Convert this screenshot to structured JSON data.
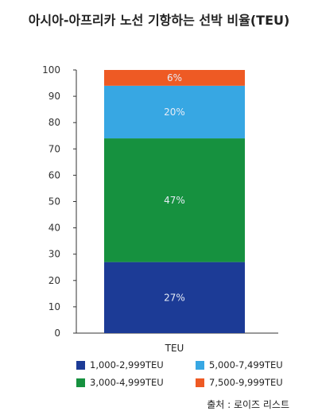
{
  "title": "아시아-아프리카 노선 기항하는 선박 비율(TEU)",
  "source": "출처 : 로이즈 리스트",
  "chart_data": {
    "type": "bar",
    "stacked": true,
    "categories": [
      "TEU"
    ],
    "ylim": [
      0,
      100
    ],
    "yticks": [
      0,
      10,
      20,
      30,
      40,
      50,
      60,
      70,
      80,
      90,
      100
    ],
    "series": [
      {
        "name": "1,000-2,999TEU",
        "values": [
          27
        ],
        "label": "27%",
        "color": "#1c3b96"
      },
      {
        "name": "3,000-4,999TEU",
        "values": [
          47
        ],
        "label": "47%",
        "color": "#16913f"
      },
      {
        "name": "5,000-7,499TEU",
        "values": [
          20
        ],
        "label": "20%",
        "color": "#37a7e3"
      },
      {
        "name": "7,500-9,999TEU",
        "values": [
          6
        ],
        "label": "6%",
        "color": "#ee5a24"
      }
    ],
    "legend_position": "bottom",
    "grid": false
  }
}
